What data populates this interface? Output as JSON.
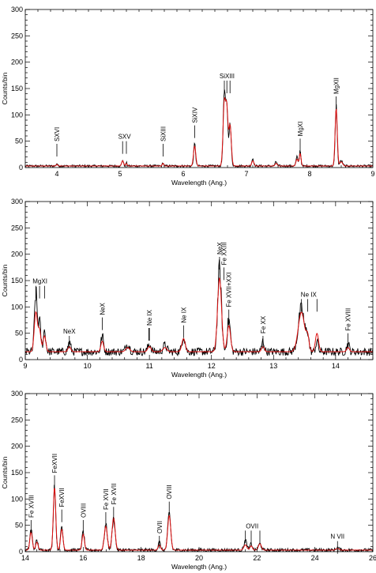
{
  "colors": {
    "data": "#000000",
    "model": "#e01010"
  },
  "chart_data": [
    {
      "type": "line",
      "xlabel": "Wavelength (Ang.)",
      "ylabel": "Counts/bin",
      "xlim": [
        3.5,
        9
      ],
      "ylim": [
        0,
        300
      ],
      "xticks": [
        4,
        5,
        6,
        7,
        8,
        9
      ],
      "yticks": [
        0,
        50,
        100,
        150,
        200,
        250,
        300
      ],
      "series": [
        {
          "color": "#000000",
          "baseline": 3,
          "noise": 2,
          "peaks": [
            [
              4.0,
              5,
              0.01
            ],
            [
              5.04,
              12,
              0.012
            ],
            [
              5.1,
              6,
              0.01
            ],
            [
              5.68,
              6,
              0.01
            ],
            [
              6.18,
              42,
              0.015
            ],
            [
              6.65,
              140,
              0.018
            ],
            [
              6.69,
              108,
              0.015
            ],
            [
              6.74,
              80,
              0.018
            ],
            [
              7.1,
              14,
              0.015
            ],
            [
              7.47,
              8,
              0.015
            ],
            [
              7.8,
              17,
              0.015
            ],
            [
              7.85,
              30,
              0.012
            ],
            [
              8.42,
              115,
              0.015
            ],
            [
              8.5,
              10,
              0.02
            ]
          ]
        },
        {
          "color": "#e01010",
          "baseline": 3,
          "noise": 0,
          "peaks": [
            [
              4.0,
              3,
              0.012
            ],
            [
              5.04,
              10,
              0.015
            ],
            [
              5.1,
              5,
              0.012
            ],
            [
              5.68,
              5,
              0.012
            ],
            [
              6.18,
              38,
              0.018
            ],
            [
              6.65,
              122,
              0.02
            ],
            [
              6.69,
              100,
              0.017
            ],
            [
              6.74,
              78,
              0.02
            ],
            [
              7.1,
              10,
              0.017
            ],
            [
              7.47,
              5,
              0.017
            ],
            [
              7.8,
              13,
              0.017
            ],
            [
              7.85,
              24,
              0.014
            ],
            [
              8.42,
              110,
              0.017
            ],
            [
              8.5,
              8,
              0.022
            ]
          ]
        }
      ],
      "annotations": [
        {
          "label": "SXVI",
          "x": [
            4.0
          ],
          "y": 45,
          "rotate": 90
        },
        {
          "label": "SXV",
          "x": [
            5.04,
            5.1
          ],
          "y": 50,
          "rotate": 0
        },
        {
          "label": "SiXIII",
          "x": [
            5.68
          ],
          "y": 45,
          "rotate": 90
        },
        {
          "label": "SiXIV",
          "x": [
            6.18
          ],
          "y": 80,
          "rotate": 90
        },
        {
          "label": "SiXIII",
          "x": [
            6.65,
            6.69,
            6.74
          ],
          "y": 165,
          "rotate": 0
        },
        {
          "label": "MgXI",
          "x": [
            7.85
          ],
          "y": 55,
          "rotate": 90
        },
        {
          "label": "MgXII",
          "x": [
            8.42
          ],
          "y": 135,
          "rotate": 90
        }
      ]
    },
    {
      "type": "line",
      "xlabel": "Wavelength (Ang.)",
      "ylabel": "Counts/bin",
      "xlim": [
        9,
        14.6
      ],
      "ylim": [
        0,
        300
      ],
      "xticks": [
        9,
        10,
        11,
        12,
        13,
        14
      ],
      "yticks": [
        0,
        50,
        100,
        150,
        200,
        250,
        300
      ],
      "series": [
        {
          "color": "#000000",
          "baseline": 15,
          "noise": 6,
          "peaks": [
            [
              9.17,
              110,
              0.022
            ],
            [
              9.23,
              55,
              0.02
            ],
            [
              9.31,
              40,
              0.02
            ],
            [
              9.71,
              18,
              0.02
            ],
            [
              10.24,
              30,
              0.02
            ],
            [
              10.65,
              15,
              0.03
            ],
            [
              11.0,
              15,
              0.025
            ],
            [
              11.25,
              12,
              0.03
            ],
            [
              11.55,
              30,
              0.025
            ],
            [
              12.13,
              155,
              0.03
            ],
            [
              12.28,
              60,
              0.025
            ],
            [
              12.83,
              20,
              0.02
            ],
            [
              13.45,
              80,
              0.05
            ],
            [
              13.55,
              30,
              0.02
            ],
            [
              13.7,
              20,
              0.02
            ],
            [
              14.2,
              15,
              0.02
            ]
          ]
        },
        {
          "color": "#e01010",
          "baseline": 15,
          "noise": 0,
          "peaks": [
            [
              9.17,
              75,
              0.025
            ],
            [
              9.23,
              40,
              0.022
            ],
            [
              9.31,
              30,
              0.022
            ],
            [
              9.71,
              10,
              0.022
            ],
            [
              10.24,
              20,
              0.022
            ],
            [
              10.65,
              8,
              0.032
            ],
            [
              11.0,
              10,
              0.027
            ],
            [
              11.25,
              8,
              0.032
            ],
            [
              11.55,
              25,
              0.027
            ],
            [
              12.13,
              140,
              0.032
            ],
            [
              12.28,
              50,
              0.027
            ],
            [
              12.83,
              10,
              0.022
            ],
            [
              13.45,
              75,
              0.052
            ],
            [
              13.55,
              25,
              0.022
            ],
            [
              13.7,
              35,
              0.025
            ],
            [
              14.2,
              8,
              0.022
            ]
          ]
        }
      ],
      "annotations": [
        {
          "label": "MgXI",
          "x": [
            9.17,
            9.23,
            9.31
          ],
          "y": 140,
          "rotate": 0
        },
        {
          "label": "NeX",
          "x": [
            9.71
          ],
          "y": 45,
          "rotate": 0
        },
        {
          "label": "NeX",
          "x": [
            10.24
          ],
          "y": 80,
          "rotate": 90
        },
        {
          "label": "Ne IX",
          "x": [
            10.99,
            11.0
          ],
          "y": 60,
          "rotate": 90
        },
        {
          "label": "Ne IX",
          "x": [
            11.55
          ],
          "y": 65,
          "rotate": 90
        },
        {
          "label": "NeX",
          "x": [
            12.13
          ],
          "y": 195,
          "rotate": 90
        },
        {
          "label": "Fe XXIII",
          "x": [
            12.2
          ],
          "y": 175,
          "rotate": 90
        },
        {
          "label": "Fe XVII+XXI",
          "x": [
            12.28
          ],
          "y": 95,
          "rotate": 90
        },
        {
          "label": "Fe XX",
          "x": [
            12.83
          ],
          "y": 45,
          "rotate": 90
        },
        {
          "label": "Ne IX",
          "x": [
            13.45,
            13.55,
            13.7
          ],
          "y": 115,
          "rotate": 0
        },
        {
          "label": "Fe XVIII",
          "x": [
            14.2
          ],
          "y": 50,
          "rotate": 90
        }
      ]
    },
    {
      "type": "line",
      "xlabel": "Wavelength (Ang.)",
      "ylabel": "Counts/bin",
      "xlim": [
        14,
        26
      ],
      "ylim": [
        0,
        300
      ],
      "xticks": [
        14,
        16,
        18,
        20,
        22,
        24,
        26
      ],
      "yticks": [
        0,
        50,
        100,
        150,
        200,
        250,
        300
      ],
      "series": [
        {
          "color": "#000000",
          "baseline": 3,
          "noise": 3,
          "peaks": [
            [
              14.2,
              40,
              0.04
            ],
            [
              14.4,
              18,
              0.04
            ],
            [
              15.01,
              125,
              0.04
            ],
            [
              15.26,
              45,
              0.04
            ],
            [
              16.0,
              35,
              0.04
            ],
            [
              16.78,
              48,
              0.05
            ],
            [
              17.05,
              60,
              0.05
            ],
            [
              18.63,
              15,
              0.04
            ],
            [
              18.97,
              70,
              0.05
            ],
            [
              21.6,
              18,
              0.05
            ],
            [
              21.8,
              12,
              0.04
            ],
            [
              22.1,
              12,
              0.05
            ],
            [
              24.78,
              5,
              0.05
            ]
          ]
        },
        {
          "color": "#e01010",
          "baseline": 3,
          "noise": 0,
          "peaks": [
            [
              14.2,
              35,
              0.042
            ],
            [
              14.4,
              15,
              0.042
            ],
            [
              15.01,
              120,
              0.042
            ],
            [
              15.26,
              40,
              0.042
            ],
            [
              16.0,
              30,
              0.042
            ],
            [
              16.78,
              45,
              0.052
            ],
            [
              17.05,
              62,
              0.052
            ],
            [
              18.63,
              10,
              0.042
            ],
            [
              18.97,
              66,
              0.052
            ],
            [
              21.6,
              10,
              0.052
            ],
            [
              21.8,
              8,
              0.042
            ],
            [
              22.1,
              12,
              0.052
            ],
            [
              24.78,
              3,
              0.052
            ]
          ]
        }
      ],
      "annotations": [
        {
          "label": "Fe XVIII",
          "x": [
            14.2
          ],
          "y": 60,
          "rotate": 90
        },
        {
          "label": "FeXVII",
          "x": [
            15.01
          ],
          "y": 145,
          "rotate": 90
        },
        {
          "label": "FeXVII",
          "x": [
            15.26
          ],
          "y": 80,
          "rotate": 90
        },
        {
          "label": "OVIII",
          "x": [
            16.0
          ],
          "y": 60,
          "rotate": 90
        },
        {
          "label": "Fe XVII",
          "x": [
            16.78
          ],
          "y": 75,
          "rotate": 90
        },
        {
          "label": "Fe XVII",
          "x": [
            17.05
          ],
          "y": 85,
          "rotate": 90
        },
        {
          "label": "OVII",
          "x": [
            18.63
          ],
          "y": 30,
          "rotate": 90
        },
        {
          "label": "OVIII",
          "x": [
            18.97
          ],
          "y": 95,
          "rotate": 90
        },
        {
          "label": "OVII",
          "x": [
            21.6,
            21.8,
            22.1
          ],
          "y": 40,
          "rotate": 0
        },
        {
          "label": "N VII",
          "x": [
            24.78
          ],
          "y": 20,
          "rotate": 0
        }
      ]
    }
  ]
}
